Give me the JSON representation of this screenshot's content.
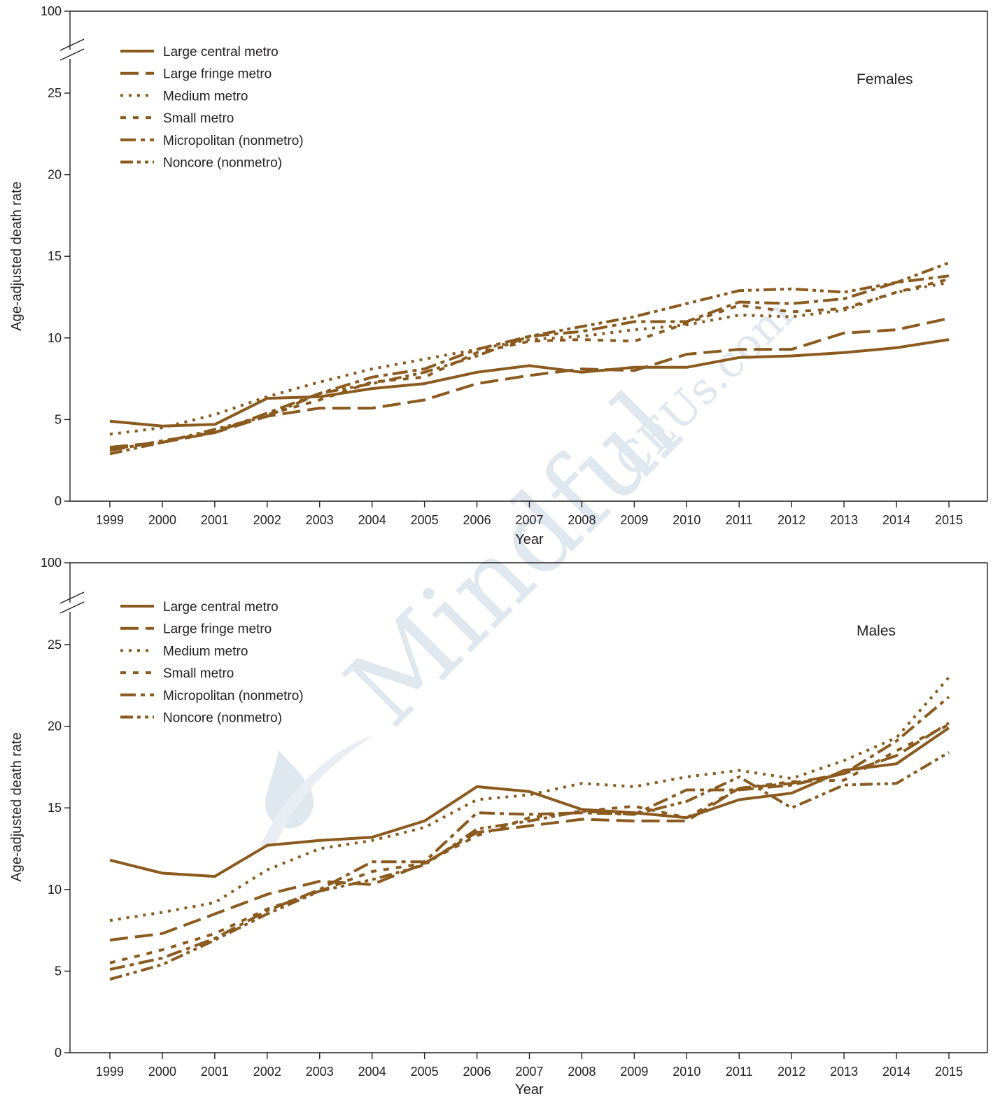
{
  "colors": {
    "series": "#8a5a1e",
    "axis": "#231f20",
    "watermark": "#dfe7ef"
  },
  "watermark": {
    "main": "Mindful",
    "sub": "CEUs.com"
  },
  "chart_data": [
    {
      "type": "line",
      "panel_label": "Females",
      "xlabel": "Year",
      "ylabel": "Age-adjusted death rate",
      "x": [
        1999,
        2000,
        2001,
        2002,
        2003,
        2004,
        2005,
        2006,
        2007,
        2008,
        2009,
        2010,
        2011,
        2012,
        2013,
        2014,
        2015
      ],
      "y_ticks": [
        0,
        5,
        10,
        15,
        20,
        25
      ],
      "y_break_top": 100,
      "ylim": [
        0,
        28
      ],
      "legend_position": "top-left",
      "series": [
        {
          "name": "Large central metro",
          "style": "solid",
          "values": [
            4.9,
            4.6,
            4.7,
            6.3,
            6.4,
            6.9,
            7.2,
            7.9,
            8.3,
            7.9,
            8.2,
            8.2,
            8.8,
            8.9,
            9.1,
            9.4,
            9.9
          ]
        },
        {
          "name": "Large fringe metro",
          "style": "long-dash",
          "values": [
            3.3,
            3.6,
            4.2,
            5.2,
            5.7,
            5.7,
            6.2,
            7.2,
            7.7,
            8.1,
            8.0,
            9.0,
            9.3,
            9.3,
            10.3,
            10.5,
            11.2
          ]
        },
        {
          "name": "Medium metro",
          "style": "dotted",
          "values": [
            4.1,
            4.5,
            5.3,
            6.4,
            7.3,
            8.1,
            8.7,
            9.3,
            9.9,
            10.1,
            10.5,
            10.8,
            11.4,
            11.3,
            11.7,
            12.8,
            13.4
          ]
        },
        {
          "name": "Small metro",
          "style": "short-dash",
          "values": [
            3.2,
            3.6,
            4.3,
            5.3,
            6.2,
            7.3,
            7.6,
            9.1,
            9.8,
            9.9,
            9.8,
            10.9,
            12.0,
            11.6,
            11.8,
            12.8,
            13.6
          ]
        },
        {
          "name": "Micropolitan (nonmetro)",
          "style": "dash-dot",
          "values": [
            3.1,
            3.7,
            4.2,
            5.4,
            6.6,
            7.6,
            8.1,
            9.3,
            10.1,
            10.4,
            11.0,
            11.0,
            12.2,
            12.1,
            12.4,
            13.4,
            13.8
          ]
        },
        {
          "name": "Noncore (nonmetro)",
          "style": "dash-dot-dot",
          "values": [
            2.9,
            3.6,
            4.4,
            5.2,
            6.6,
            7.2,
            7.9,
            8.9,
            10.1,
            10.7,
            11.3,
            12.1,
            12.9,
            13.0,
            12.8,
            13.4,
            14.6
          ]
        }
      ]
    },
    {
      "type": "line",
      "panel_label": "Males",
      "xlabel": "Year",
      "ylabel": "Age-adjusted death rate",
      "x": [
        1999,
        2000,
        2001,
        2002,
        2003,
        2004,
        2005,
        2006,
        2007,
        2008,
        2009,
        2010,
        2011,
        2012,
        2013,
        2014,
        2015
      ],
      "y_ticks": [
        0,
        5,
        10,
        15,
        20,
        25
      ],
      "y_break_top": 100,
      "ylim": [
        0,
        28
      ],
      "legend_position": "top-left",
      "series": [
        {
          "name": "Large central metro",
          "style": "solid",
          "values": [
            11.8,
            11.0,
            10.8,
            12.7,
            13.0,
            13.2,
            14.2,
            16.3,
            16.0,
            14.9,
            14.7,
            14.4,
            15.5,
            15.9,
            17.3,
            17.7,
            19.9
          ]
        },
        {
          "name": "Large fringe metro",
          "style": "long-dash",
          "values": [
            6.9,
            7.3,
            8.5,
            9.7,
            10.5,
            10.3,
            11.6,
            13.5,
            13.9,
            14.3,
            14.2,
            14.2,
            16.2,
            16.5,
            17.1,
            18.2,
            20.2
          ]
        },
        {
          "name": "Medium metro",
          "style": "dotted",
          "values": [
            8.1,
            8.6,
            9.2,
            11.2,
            12.5,
            13.0,
            13.8,
            15.5,
            15.8,
            16.5,
            16.3,
            16.9,
            17.3,
            16.8,
            17.9,
            19.3,
            23.0
          ]
        },
        {
          "name": "Small metro",
          "style": "short-dash",
          "values": [
            5.5,
            6.3,
            7.3,
            8.8,
            9.9,
            11.1,
            11.6,
            13.3,
            14.4,
            14.8,
            15.1,
            14.4,
            16.2,
            16.6,
            16.7,
            18.5,
            20.1
          ]
        },
        {
          "name": "Micropolitan (nonmetro)",
          "style": "dash-dot",
          "values": [
            5.1,
            5.8,
            7.0,
            8.7,
            10.0,
            11.7,
            11.7,
            14.7,
            14.6,
            14.7,
            14.6,
            16.1,
            16.1,
            16.4,
            17.1,
            19.1,
            21.8
          ]
        },
        {
          "name": "Noncore (nonmetro)",
          "style": "dash-dot-dot",
          "values": [
            4.5,
            5.4,
            6.9,
            8.5,
            9.9,
            10.6,
            11.5,
            13.7,
            14.2,
            14.8,
            14.6,
            15.4,
            16.9,
            15.0,
            16.4,
            16.5,
            18.4
          ]
        }
      ]
    }
  ]
}
